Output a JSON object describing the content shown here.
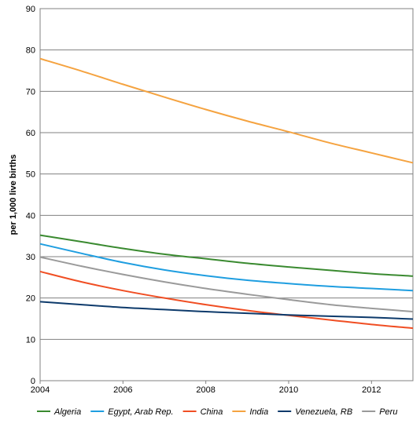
{
  "chart_data": {
    "type": "line",
    "title": "",
    "xlabel": "",
    "ylabel": "per 1,000 live births",
    "xlim": [
      2004,
      2013
    ],
    "ylim": [
      0,
      90
    ],
    "x_ticks": [
      2004,
      2006,
      2008,
      2010,
      2012
    ],
    "y_ticks": [
      0,
      10,
      20,
      30,
      40,
      50,
      60,
      70,
      80,
      90
    ],
    "grid": true,
    "legend_position": "bottom",
    "x": [
      2004,
      2005,
      2006,
      2007,
      2008,
      2009,
      2010,
      2011,
      2012,
      2013
    ],
    "series": [
      {
        "name": "Algeria",
        "color": "#3a8a30",
        "values": [
          35.2,
          33.6,
          32.0,
          30.6,
          29.5,
          28.4,
          27.5,
          26.7,
          25.9,
          25.3
        ]
      },
      {
        "name": "Egypt, Arab Rep.",
        "color": "#1f9ee0",
        "values": [
          33.1,
          30.8,
          28.6,
          26.8,
          25.4,
          24.3,
          23.5,
          22.8,
          22.3,
          21.8
        ]
      },
      {
        "name": "China",
        "color": "#f04e23",
        "values": [
          26.4,
          23.9,
          21.8,
          20.0,
          18.4,
          17.0,
          15.8,
          14.7,
          13.6,
          12.7
        ]
      },
      {
        "name": "India",
        "color": "#f5a340",
        "values": [
          77.9,
          74.9,
          71.7,
          68.6,
          65.6,
          62.8,
          60.2,
          57.5,
          55.1,
          52.7
        ]
      },
      {
        "name": "Venezuela, RB",
        "color": "#0d3a6b",
        "values": [
          19.1,
          18.4,
          17.7,
          17.2,
          16.7,
          16.3,
          15.9,
          15.6,
          15.3,
          14.9
        ]
      },
      {
        "name": "Peru",
        "color": "#9a9a9a",
        "values": [
          29.9,
          27.7,
          25.7,
          23.9,
          22.3,
          20.9,
          19.6,
          18.4,
          17.5,
          16.7
        ]
      }
    ]
  }
}
